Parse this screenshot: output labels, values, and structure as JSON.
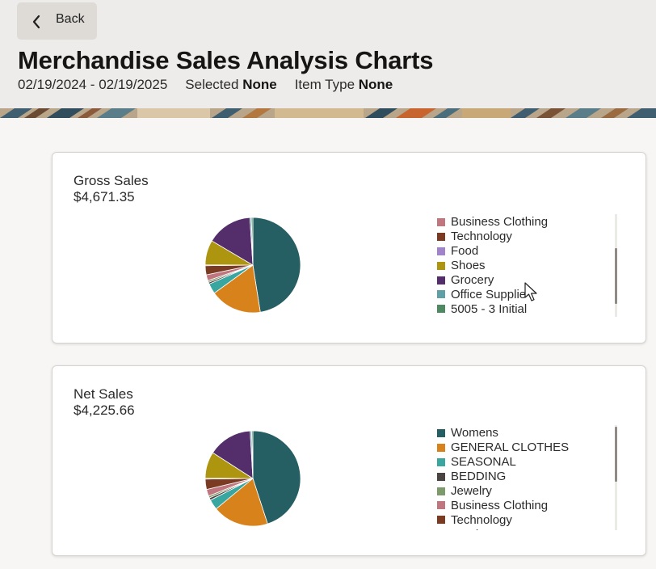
{
  "header": {
    "back_label": "Back",
    "title": "Merchandise Sales Analysis Charts",
    "date_range": "02/19/2024 - 02/19/2025",
    "selected_label": "Selected",
    "selected_value": "None",
    "item_type_label": "Item Type",
    "item_type_value": "None"
  },
  "colors": {
    "Womens": "#255e63",
    "GENERAL CLOTHES": "#d8821c",
    "SEASONAL": "#3aa6a0",
    "BEDDING": "#4a4542",
    "Jewelry": "#7c9a6a",
    "Business Clothing": "#c0767f",
    "Technology": "#7b3b23",
    "Food": "#a083c9",
    "Shoes": "#ad9510",
    "Grocery": "#542e6b",
    "Office Supplies": "#5fa0a6",
    "5005 - 3 Initial": "#4d8a62"
  },
  "cards": [
    {
      "title": "Gross Sales",
      "value": "$4,671.35",
      "legend": [
        "Business Clothing",
        "Technology",
        "Food",
        "Shoes",
        "Grocery",
        "Office Supplie",
        "5005 - 3 Initial"
      ],
      "chart_data": {
        "type": "pie",
        "labels": [
          "Womens",
          "GENERAL CLOTHES",
          "SEASONAL",
          "BEDDING",
          "Jewelry",
          "Business Clothing",
          "Technology",
          "Food",
          "Shoes",
          "Grocery",
          "Office Supplies",
          "5005 - 3 Initial"
        ],
        "values": [
          47.5,
          17.5,
          3.5,
          0.6,
          0.6,
          2.0,
          3.1,
          0.3,
          8.4,
          15.5,
          0.5,
          0.5
        ]
      }
    },
    {
      "title": "Net Sales",
      "value": "$4,225.66",
      "legend": [
        "Womens",
        "GENERAL CLOTHES",
        "SEASONAL",
        "BEDDING",
        "Jewelry",
        "Business Clothing",
        "Technology",
        "Food"
      ],
      "chart_data": {
        "type": "pie",
        "labels": [
          "Womens",
          "GENERAL CLOTHES",
          "SEASONAL",
          "BEDDING",
          "Jewelry",
          "Business Clothing",
          "Technology",
          "Food",
          "Shoes",
          "Grocery",
          "Office Supplies",
          "5005 - 3 Initial"
        ],
        "values": [
          45.0,
          19.0,
          3.5,
          0.8,
          0.7,
          2.3,
          3.5,
          0.3,
          9.0,
          15.0,
          0.5,
          0.4
        ]
      }
    }
  ]
}
